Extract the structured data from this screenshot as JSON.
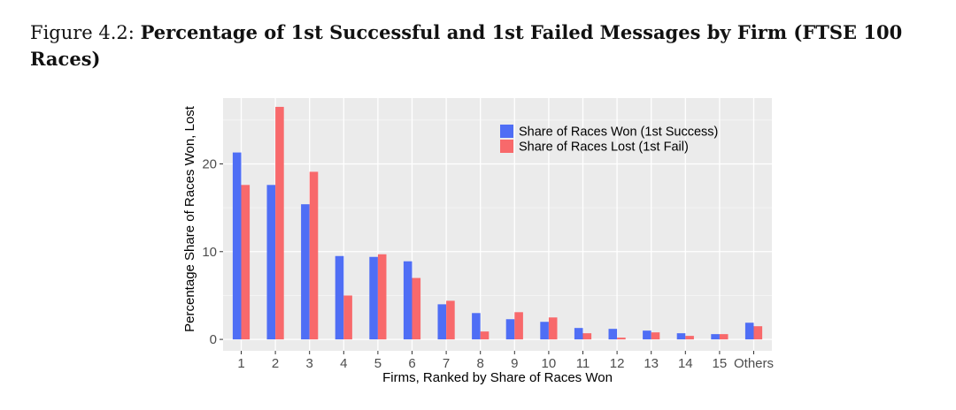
{
  "figure": {
    "label": "Figure 4.2:",
    "title": "Percentage of 1st Successful and 1st Failed Messages by Firm (FTSE 100 Races)"
  },
  "chart_data": {
    "type": "bar",
    "categories": [
      "1",
      "2",
      "3",
      "4",
      "5",
      "6",
      "7",
      "8",
      "9",
      "10",
      "11",
      "12",
      "13",
      "14",
      "15",
      "Others"
    ],
    "series": [
      {
        "name": "Share of Races Won (1st Success)",
        "color": "#4f6ef5",
        "values": [
          21.3,
          17.6,
          15.4,
          9.5,
          9.4,
          8.9,
          4.0,
          3.0,
          2.3,
          2.0,
          1.3,
          1.2,
          1.0,
          0.7,
          0.6,
          1.9
        ]
      },
      {
        "name": "Share of Races Lost (1st Fail)",
        "color": "#f8696b",
        "values": [
          17.6,
          26.5,
          19.1,
          5.0,
          9.7,
          7.0,
          4.4,
          0.9,
          3.1,
          2.5,
          0.7,
          0.2,
          0.8,
          0.4,
          0.6,
          1.5
        ]
      }
    ],
    "xlabel": "Firms, Ranked by Share of Races Won",
    "ylabel": "Percentage Share of Races Won, Lost",
    "ylim": [
      -1.3,
      27.5
    ],
    "yticks": [
      0,
      10,
      20
    ],
    "grid": true,
    "legend_position": "top-right"
  }
}
